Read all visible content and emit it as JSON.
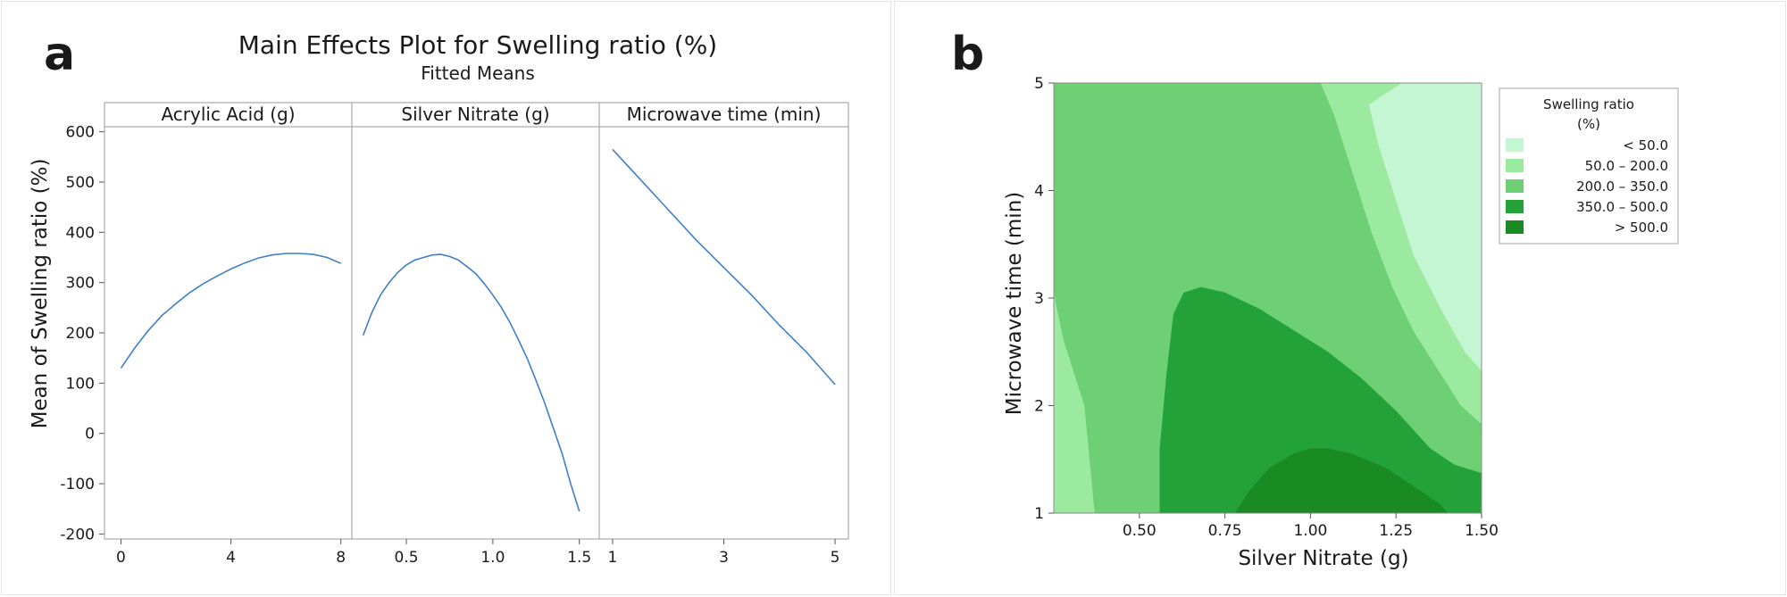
{
  "chart_data": [
    {
      "panel_label": "a",
      "type": "line",
      "title": "Main Effects Plot for Swelling ratio (%)",
      "subtitle": "Fitted Means",
      "ylabel": "Mean of Swelling ratio (%)",
      "ylim": [
        -210,
        610
      ],
      "yticks": [
        600,
        500,
        400,
        300,
        200,
        100,
        0,
        -100,
        -200
      ],
      "grid": false,
      "line_color": "#3f7fc9",
      "panels": [
        {
          "name": "Acrylic Acid (g)",
          "xlim": [
            -0.6,
            8.4
          ],
          "xticks": [
            0,
            4,
            8
          ],
          "x": [
            0,
            0.5,
            1,
            1.5,
            2,
            2.5,
            3,
            3.5,
            4,
            4.5,
            5,
            5.5,
            6,
            6.5,
            7,
            7.5,
            8
          ],
          "y": [
            130,
            170,
            205,
            235,
            258,
            280,
            298,
            313,
            327,
            339,
            349,
            355,
            358,
            358,
            356,
            350,
            338
          ]
        },
        {
          "name": "Silver Nitrate (g)",
          "xlim": [
            0.185,
            1.615
          ],
          "xticks": [
            "0.5",
            "1.0",
            "1.5"
          ],
          "x": [
            0.25,
            0.3,
            0.35,
            0.4,
            0.45,
            0.5,
            0.55,
            0.6,
            0.65,
            0.7,
            0.75,
            0.8,
            0.85,
            0.9,
            0.95,
            1.0,
            1.05,
            1.1,
            1.15,
            1.2,
            1.25,
            1.3,
            1.35,
            1.4,
            1.45,
            1.5
          ],
          "y": [
            195,
            240,
            275,
            300,
            320,
            335,
            345,
            350,
            355,
            356,
            352,
            345,
            332,
            318,
            298,
            275,
            250,
            220,
            185,
            148,
            105,
            60,
            10,
            -40,
            -100,
            -155
          ]
        },
        {
          "name": "Microwave time (min)",
          "xlim": [
            0.76,
            5.24
          ],
          "xticks": [
            1,
            3,
            5
          ],
          "x": [
            1,
            1.5,
            2,
            2.5,
            3,
            3.5,
            4,
            4.5,
            5
          ],
          "y": [
            565,
            505,
            445,
            385,
            330,
            275,
            215,
            160,
            97
          ]
        }
      ]
    },
    {
      "panel_label": "b",
      "type": "contour",
      "xlabel": "Silver Nitrate (g)",
      "ylabel": "Microwave time (min)",
      "xlim": [
        0.25,
        1.5
      ],
      "ylim": [
        1,
        5
      ],
      "xticks": [
        "0.50",
        "0.75",
        "1.00",
        "1.25",
        "1.50"
      ],
      "yticks": [
        1,
        2,
        3,
        4,
        5
      ],
      "legend": {
        "title_line1": "Swelling ratio",
        "title_line2": "(%)",
        "position": "right",
        "entries": [
          {
            "range": "<  50.0",
            "color": "#c4f6d4"
          },
          {
            "range": "50.0  –  200.0",
            "color": "#9bea9f"
          },
          {
            "range": "200.0  –  350.0",
            "color": "#6dd075"
          },
          {
            "range": "350.0  –  500.0",
            "color": "#23a23a"
          },
          {
            "range": ">  500.0",
            "color": "#1a8a22"
          }
        ]
      },
      "regions": [
        {
          "level": "50.0 – 200.0",
          "color": "#9bea9f",
          "polygon": [
            [
              1.5,
              5
            ],
            [
              1.5,
              1.0
            ],
            [
              0.25,
              1.0
            ],
            [
              0.25,
              5
            ]
          ]
        },
        {
          "level": "200.0 – 350.0",
          "color": "#6dd075",
          "polygon": [
            [
              0.37,
              1.0
            ],
            [
              0.34,
              2.0
            ],
            [
              0.28,
              2.6
            ],
            [
              0.25,
              3.05
            ],
            [
              0.25,
              5
            ],
            [
              1.26,
              5
            ],
            [
              1.3,
              4.6
            ],
            [
              1.35,
              4.0
            ],
            [
              1.42,
              3.2
            ],
            [
              1.5,
              2.2
            ],
            [
              1.5,
              1.0
            ]
          ]
        },
        {
          "level": "<  50.0",
          "color": "#c4f6d4",
          "polygon": [
            [
              1.265,
              5
            ],
            [
              1.5,
              5
            ],
            [
              1.5,
              2.32
            ],
            [
              1.45,
              2.5
            ],
            [
              1.38,
              2.9
            ],
            [
              1.3,
              3.4
            ],
            [
              1.25,
              3.9
            ],
            [
              1.2,
              4.4
            ],
            [
              1.17,
              4.8
            ]
          ]
        },
        {
          "level": "50.0 – 200.0",
          "color": "#9bea9f",
          "polygon": [
            [
              1.03,
              5
            ],
            [
              1.265,
              5
            ],
            [
              1.17,
              4.8
            ],
            [
              1.2,
              4.4
            ],
            [
              1.25,
              3.9
            ],
            [
              1.3,
              3.4
            ],
            [
              1.38,
              2.9
            ],
            [
              1.45,
              2.5
            ],
            [
              1.5,
              2.32
            ],
            [
              1.5,
              1.83
            ],
            [
              1.44,
              2.0
            ],
            [
              1.38,
              2.3
            ],
            [
              1.3,
              2.7
            ],
            [
              1.24,
              3.1
            ],
            [
              1.18,
              3.6
            ],
            [
              1.12,
              4.2
            ],
            [
              1.07,
              4.7
            ]
          ]
        },
        {
          "level": "350.0 – 500.0",
          "color": "#23a23a",
          "polygon": [
            [
              0.56,
              1.0
            ],
            [
              0.56,
              1.6
            ],
            [
              0.58,
              2.3
            ],
            [
              0.6,
              2.85
            ],
            [
              0.63,
              3.05
            ],
            [
              0.68,
              3.1
            ],
            [
              0.75,
              3.05
            ],
            [
              0.85,
              2.9
            ],
            [
              0.95,
              2.7
            ],
            [
              1.05,
              2.5
            ],
            [
              1.15,
              2.25
            ],
            [
              1.25,
              1.95
            ],
            [
              1.35,
              1.6
            ],
            [
              1.42,
              1.45
            ],
            [
              1.5,
              1.37
            ],
            [
              1.5,
              1.0
            ]
          ]
        },
        {
          "level": ">  500.0",
          "color": "#1a8a22",
          "polygon": [
            [
              0.78,
              1.0
            ],
            [
              0.82,
              1.2
            ],
            [
              0.88,
              1.42
            ],
            [
              0.95,
              1.55
            ],
            [
              1.0,
              1.6
            ],
            [
              1.05,
              1.6
            ],
            [
              1.12,
              1.55
            ],
            [
              1.22,
              1.42
            ],
            [
              1.3,
              1.25
            ],
            [
              1.38,
              1.08
            ],
            [
              1.4,
              1.0
            ]
          ]
        }
      ]
    }
  ]
}
